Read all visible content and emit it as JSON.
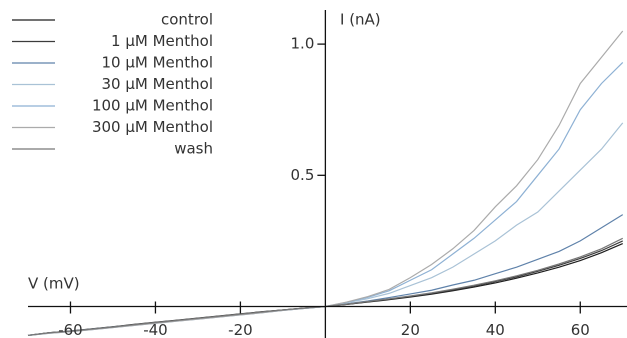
{
  "chart_data": {
    "type": "line",
    "xlabel": "V (mV)",
    "ylabel": "I (nA)",
    "x": [
      -70,
      -65,
      -60,
      -55,
      -50,
      -45,
      -40,
      -35,
      -30,
      -25,
      -20,
      -15,
      -10,
      -5,
      0,
      5,
      10,
      15,
      20,
      25,
      30,
      35,
      40,
      45,
      50,
      55,
      60,
      65,
      70
    ],
    "xlim": [
      -70,
      71
    ],
    "ylim": [
      -0.12,
      1.13
    ],
    "xticks": [
      -60,
      -40,
      -20,
      20,
      40,
      60
    ],
    "yticks": [
      0.5,
      {
        "value": 1,
        "label": "1.0"
      }
    ],
    "series": [
      {
        "name": "control",
        "color": "#1e1e1e",
        "values": [
          -0.11,
          -0.1,
          -0.093,
          -0.085,
          -0.077,
          -0.068,
          -0.06,
          -0.052,
          -0.044,
          -0.036,
          -0.028,
          -0.02,
          -0.013,
          -0.006,
          0,
          0.008,
          0.017,
          0.026,
          0.036,
          0.047,
          0.06,
          0.074,
          0.09,
          0.108,
          0.128,
          0.15,
          0.175,
          0.205,
          0.24
        ]
      },
      {
        "name": "1 µM Menthol",
        "color": "#3c3c3c",
        "values": [
          -0.11,
          -0.1,
          -0.094,
          -0.086,
          -0.078,
          -0.069,
          -0.061,
          -0.053,
          -0.045,
          -0.037,
          -0.029,
          -0.021,
          -0.013,
          -0.006,
          0,
          0.008,
          0.018,
          0.028,
          0.038,
          0.05,
          0.063,
          0.078,
          0.095,
          0.113,
          0.134,
          0.157,
          0.183,
          0.213,
          0.25
        ]
      },
      {
        "name": "10 µM Menthol",
        "color": "#5f82aa",
        "values": [
          -0.11,
          -0.101,
          -0.094,
          -0.086,
          -0.078,
          -0.07,
          -0.062,
          -0.054,
          -0.046,
          -0.038,
          -0.03,
          -0.022,
          -0.014,
          -0.007,
          0,
          0.01,
          0.021,
          0.034,
          0.048,
          0.062,
          0.082,
          0.1,
          0.125,
          0.15,
          0.18,
          0.21,
          0.25,
          0.3,
          0.35
        ]
      },
      {
        "name": "30 µM Menthol",
        "color": "#a9c2d6",
        "values": [
          -0.11,
          -0.101,
          -0.095,
          -0.087,
          -0.079,
          -0.071,
          -0.063,
          -0.055,
          -0.047,
          -0.039,
          -0.031,
          -0.023,
          -0.015,
          -0.007,
          0,
          0.014,
          0.03,
          0.05,
          0.08,
          0.11,
          0.15,
          0.2,
          0.25,
          0.31,
          0.36,
          0.44,
          0.52,
          0.6,
          0.7
        ]
      },
      {
        "name": "100 µM Menthol",
        "color": "#8eb1d4",
        "values": [
          -0.11,
          -0.102,
          -0.096,
          -0.088,
          -0.08,
          -0.072,
          -0.064,
          -0.056,
          -0.048,
          -0.04,
          -0.032,
          -0.024,
          -0.015,
          -0.007,
          0,
          0.016,
          0.035,
          0.06,
          0.1,
          0.14,
          0.2,
          0.26,
          0.33,
          0.4,
          0.5,
          0.6,
          0.75,
          0.85,
          0.93
        ]
      },
      {
        "name": "300 µM Menthol",
        "color": "#ababab",
        "values": [
          -0.11,
          -0.102,
          -0.096,
          -0.088,
          -0.08,
          -0.072,
          -0.064,
          -0.056,
          -0.048,
          -0.04,
          -0.032,
          -0.024,
          -0.015,
          -0.007,
          0,
          0.017,
          0.038,
          0.065,
          0.11,
          0.16,
          0.22,
          0.29,
          0.38,
          0.46,
          0.56,
          0.69,
          0.85,
          0.95,
          1.05
        ]
      },
      {
        "name": "wash",
        "color": "#777777",
        "values": [
          -0.11,
          -0.1,
          -0.094,
          -0.086,
          -0.078,
          -0.069,
          -0.061,
          -0.053,
          -0.045,
          -0.037,
          -0.029,
          -0.021,
          -0.013,
          -0.006,
          0,
          0.009,
          0.019,
          0.029,
          0.04,
          0.052,
          0.066,
          0.081,
          0.098,
          0.117,
          0.138,
          0.162,
          0.189,
          0.22,
          0.26
        ]
      }
    ]
  }
}
